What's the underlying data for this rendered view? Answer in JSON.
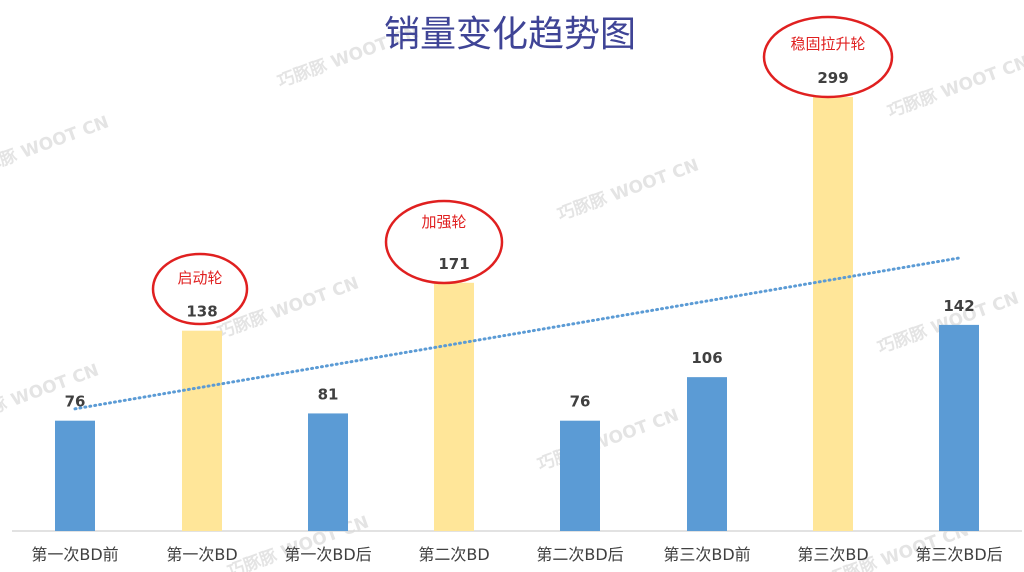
{
  "chart_data": {
    "type": "bar",
    "title": "销量变化趋势图",
    "xlabel": "",
    "ylabel": "",
    "categories": [
      "第一次BD前",
      "第一次BD",
      "第一次BD后",
      "第二次BD",
      "第二次BD后",
      "第三次BD前",
      "第三次BD",
      "第三次BD后"
    ],
    "values": [
      76,
      138,
      81,
      171,
      76,
      106,
      299,
      142
    ],
    "bar_colors": [
      "#5b9bd5",
      "#ffe699",
      "#5b9bd5",
      "#ffe699",
      "#5b9bd5",
      "#5b9bd5",
      "#ffe699",
      "#5b9bd5"
    ],
    "trendline": {
      "type": "linear",
      "style": "dotted",
      "color": "#5b9bd5"
    },
    "annotations": [
      {
        "category": "第一次BD",
        "text": "启动轮"
      },
      {
        "category": "第二次BD",
        "text": "加强轮"
      },
      {
        "category": "第三次BD",
        "text": "稳固拉升轮"
      }
    ],
    "ylim": [
      0,
      299
    ],
    "grid": false,
    "legend": "none"
  },
  "watermark": "巧豚豚 WOOT CN",
  "colors": {
    "title": "#3f4496",
    "annotation": "#e02020",
    "axis": "#d9d9d9"
  }
}
